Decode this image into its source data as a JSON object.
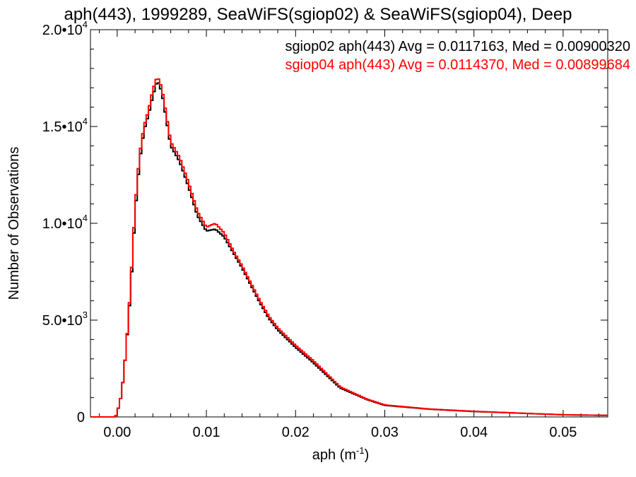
{
  "chart_data": {
    "type": "histogram",
    "title": "aph(443), 1999289, SeaWiFS(sgiop02) & SeaWiFS(sgiop04), Deep",
    "xlabel": "aph (m",
    "xlabel_sup": "-1",
    "xlabel_close": ")",
    "ylabel": "Number of Observations",
    "xlim": [
      -0.003,
      0.055
    ],
    "ylim": [
      0,
      20000
    ],
    "xticks": [
      0.0,
      0.01,
      0.02,
      0.03,
      0.04,
      0.05
    ],
    "xtick_labels": [
      "0.00",
      "0.01",
      "0.02",
      "0.03",
      "0.04",
      "0.05"
    ],
    "yticks": [
      0,
      5000,
      10000,
      15000,
      20000
    ],
    "ytick_labels": [
      {
        "mant": "0",
        "exp": ""
      },
      {
        "mant": "5.0•10",
        "exp": "3"
      },
      {
        "mant": "1.0•10",
        "exp": "4"
      },
      {
        "mant": "1.5•10",
        "exp": "4"
      },
      {
        "mant": "2.0•10",
        "exp": "4"
      }
    ],
    "grid": false,
    "legend_position": "top-right",
    "series": [
      {
        "name": "sgiop02",
        "label": "sgiop02 aph(443) Avg = 0.0117163, Med = 0.00900320",
        "color": "#000000",
        "points": [
          [
            -0.003,
            0
          ],
          [
            -0.0002,
            0
          ],
          [
            0.0,
            200
          ],
          [
            0.0005,
            1200
          ],
          [
            0.001,
            3500
          ],
          [
            0.0015,
            6500
          ],
          [
            0.002,
            10500
          ],
          [
            0.0025,
            13200
          ],
          [
            0.003,
            14800
          ],
          [
            0.0035,
            15600
          ],
          [
            0.004,
            16600
          ],
          [
            0.0045,
            17400
          ],
          [
            0.005,
            16800
          ],
          [
            0.0055,
            15400
          ],
          [
            0.006,
            14000
          ],
          [
            0.007,
            13200
          ],
          [
            0.008,
            11900
          ],
          [
            0.009,
            10400
          ],
          [
            0.01,
            9600
          ],
          [
            0.011,
            9700
          ],
          [
            0.012,
            9300
          ],
          [
            0.013,
            8500
          ],
          [
            0.014,
            7700
          ],
          [
            0.015,
            6800
          ],
          [
            0.016,
            5900
          ],
          [
            0.017,
            5100
          ],
          [
            0.018,
            4500
          ],
          [
            0.02,
            3600
          ],
          [
            0.022,
            2800
          ],
          [
            0.025,
            1500
          ],
          [
            0.028,
            900
          ],
          [
            0.03,
            600
          ],
          [
            0.035,
            400
          ],
          [
            0.04,
            280
          ],
          [
            0.045,
            200
          ],
          [
            0.05,
            110
          ],
          [
            0.055,
            80
          ]
        ]
      },
      {
        "name": "sgiop04",
        "label": "sgiop04 aph(443) Avg = 0.0114370, Med = 0.00899684",
        "color": "#ff0000",
        "points": [
          [
            -0.003,
            0
          ],
          [
            -0.0002,
            0
          ],
          [
            0.0,
            200
          ],
          [
            0.0005,
            1200
          ],
          [
            0.001,
            3500
          ],
          [
            0.0015,
            6700
          ],
          [
            0.002,
            10800
          ],
          [
            0.0025,
            13500
          ],
          [
            0.003,
            15000
          ],
          [
            0.0035,
            15800
          ],
          [
            0.004,
            16900
          ],
          [
            0.0045,
            17600
          ],
          [
            0.005,
            17000
          ],
          [
            0.0055,
            15600
          ],
          [
            0.006,
            14200
          ],
          [
            0.007,
            13400
          ],
          [
            0.008,
            12100
          ],
          [
            0.009,
            10600
          ],
          [
            0.01,
            9800
          ],
          [
            0.011,
            10000
          ],
          [
            0.012,
            9500
          ],
          [
            0.013,
            8600
          ],
          [
            0.014,
            7800
          ],
          [
            0.015,
            6900
          ],
          [
            0.016,
            6000
          ],
          [
            0.017,
            5200
          ],
          [
            0.018,
            4600
          ],
          [
            0.02,
            3700
          ],
          [
            0.022,
            2900
          ],
          [
            0.025,
            1550
          ],
          [
            0.028,
            920
          ],
          [
            0.03,
            620
          ],
          [
            0.035,
            410
          ],
          [
            0.04,
            290
          ],
          [
            0.045,
            200
          ],
          [
            0.05,
            110
          ],
          [
            0.055,
            80
          ]
        ]
      }
    ]
  }
}
